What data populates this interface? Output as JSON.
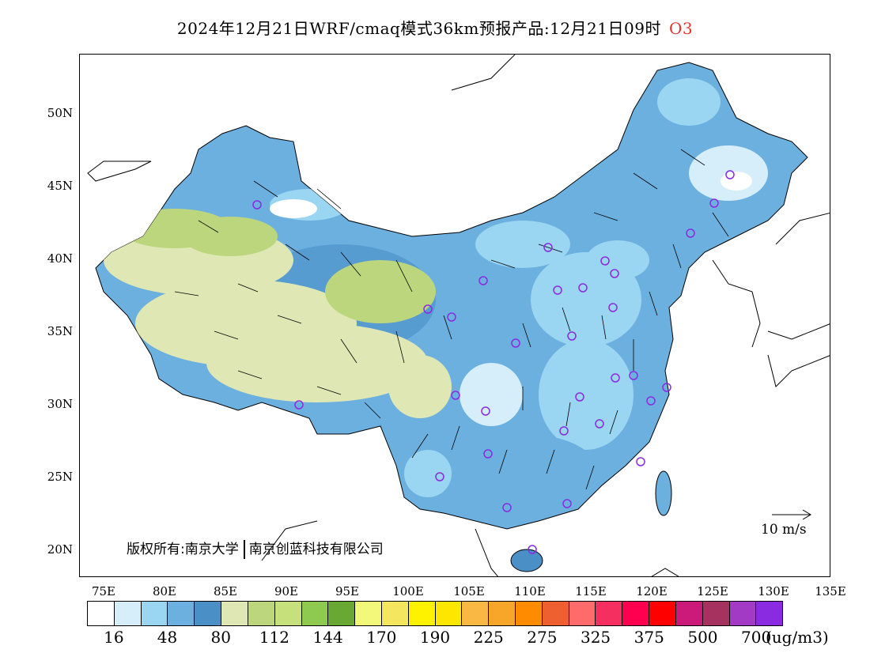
{
  "title": {
    "main": "2024年12月21日WRF/cmaq模式36km预报产品:12月21日09时",
    "pollutant": "O3"
  },
  "map": {
    "lat_labels": [
      "50N",
      "45N",
      "40N",
      "35N",
      "30N",
      "25N",
      "20N"
    ],
    "lon_labels": [
      "75E",
      "80E",
      "85E",
      "90E",
      "95E",
      "100E",
      "105E",
      "110E",
      "115E",
      "120E",
      "125E",
      "130E",
      "135E"
    ],
    "copyright_left": "版权所有:南京大学",
    "copyright_right": "南京创蓝科技有限公司",
    "wind_reference": "10 m/s",
    "city_marker_color": "#8a2be2",
    "arrow_color": "#000000"
  },
  "colorbar": {
    "colors": [
      "#ffffff",
      "#d5eefa",
      "#9ad5f2",
      "#6cb0df",
      "#4a8fc6",
      "#dfe8b5",
      "#bcd67d",
      "#c6e07b",
      "#8dca4f",
      "#6aa834",
      "#f2f97a",
      "#f5e65f",
      "#fff200",
      "#ffe600",
      "#f9b744",
      "#f8a62a",
      "#ff8c00",
      "#ef6030",
      "#ff6b6b",
      "#f53060",
      "#ff0050",
      "#ff0000",
      "#cc1a7a",
      "#a5325f",
      "#a23ac6",
      "#8a2be2"
    ],
    "labels": [
      "16",
      "48",
      "80",
      "112",
      "144",
      "170",
      "190",
      "225",
      "275",
      "325",
      "375",
      "500",
      "700"
    ],
    "unit": "(ug/m3)"
  }
}
